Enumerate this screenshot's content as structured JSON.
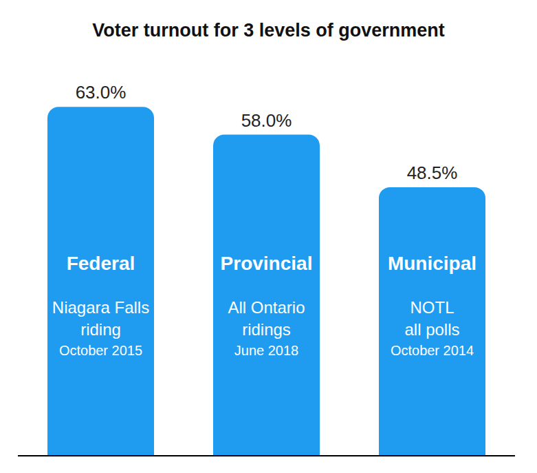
{
  "chart_data": {
    "type": "bar",
    "title": "Voter turnout for 3 levels of government",
    "categories": [
      "Federal",
      "Provincial",
      "Municipal"
    ],
    "values": [
      63.0,
      58.0,
      48.5
    ],
    "value_labels": [
      "63.0%",
      "58.0%",
      "48.5%"
    ],
    "annotations": [
      [
        "Niagara Falls",
        "riding",
        "October 2015"
      ],
      [
        "All Ontario",
        "ridings",
        "June 2018"
      ],
      [
        "NOTL",
        "all polls",
        "October 2014"
      ]
    ],
    "color": "#1f9cf0",
    "ylim": [
      0,
      70
    ],
    "grid": false,
    "data_labels": true,
    "tick_labels": false
  }
}
